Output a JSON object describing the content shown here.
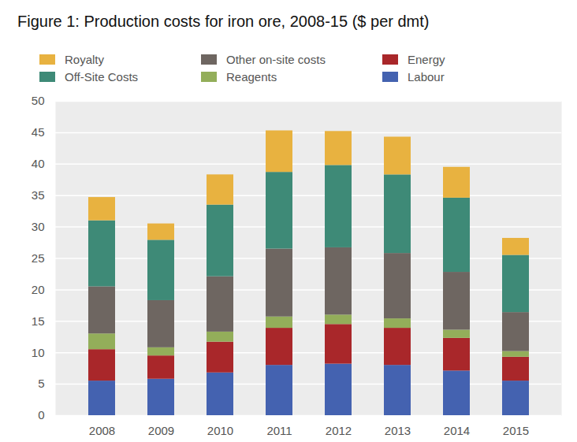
{
  "chart_data": {
    "type": "bar",
    "title": "Figure 1: Production costs for iron ore, 2008-15 ($ per dmt)",
    "categories": [
      "2008",
      "2009",
      "2010",
      "2011",
      "2012",
      "2013",
      "2014",
      "2015"
    ],
    "stacked": true,
    "grid": true,
    "legend": "top",
    "ylim": [
      0,
      50
    ],
    "yticks": [
      0,
      5,
      10,
      15,
      20,
      25,
      30,
      35,
      40,
      45,
      50
    ],
    "series": [
      {
        "name": "Labour",
        "color": "#4462b0",
        "values": [
          5.5,
          5.8,
          6.8,
          8.0,
          8.2,
          8.0,
          7.1,
          5.5
        ]
      },
      {
        "name": "Energy",
        "color": "#a9272a",
        "values": [
          5.0,
          3.7,
          4.9,
          5.9,
          6.3,
          5.9,
          5.2,
          3.8
        ]
      },
      {
        "name": "Reagents",
        "color": "#93ae5a",
        "values": [
          2.5,
          1.3,
          1.6,
          1.8,
          1.5,
          1.5,
          1.3,
          0.9
        ]
      },
      {
        "name": "Other on-site costs",
        "color": "#6e6661",
        "values": [
          7.5,
          7.5,
          8.8,
          10.8,
          10.7,
          10.4,
          9.2,
          6.2
        ]
      },
      {
        "name": "Off-Site Costs",
        "color": "#3e8a77",
        "values": [
          10.5,
          9.6,
          11.4,
          12.2,
          13.1,
          12.5,
          11.8,
          9.1
        ]
      },
      {
        "name": "Royalty",
        "color": "#e8b240",
        "values": [
          3.7,
          2.6,
          4.8,
          6.6,
          5.4,
          6.0,
          4.9,
          2.7
        ]
      }
    ]
  }
}
